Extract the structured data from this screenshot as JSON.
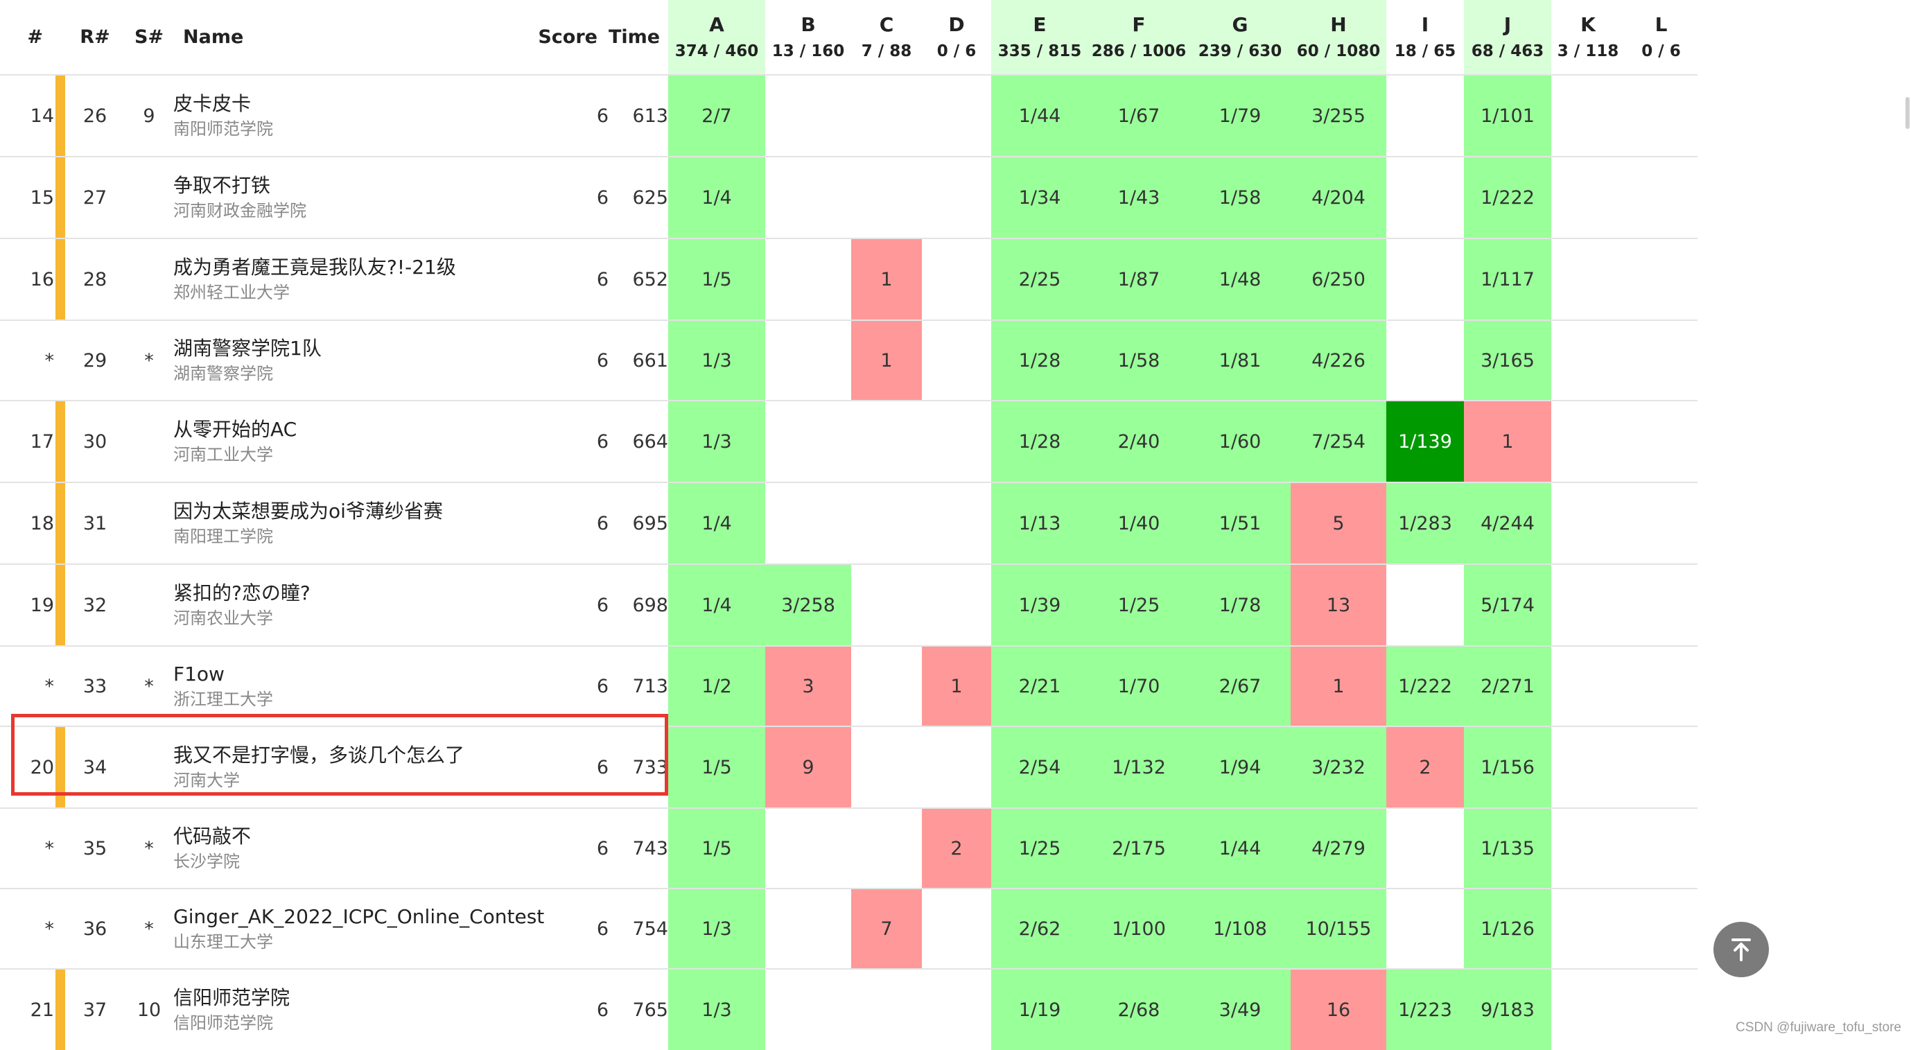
{
  "header": {
    "rank": "#",
    "rrank": "R#",
    "srank": "S#",
    "name": "Name",
    "score": "Score",
    "time": "Time"
  },
  "problems": [
    {
      "label": "A",
      "stat": "374 / 460"
    },
    {
      "label": "B",
      "stat": "13 / 160"
    },
    {
      "label": "C",
      "stat": "7 / 88"
    },
    {
      "label": "D",
      "stat": "0 / 6"
    },
    {
      "label": "E",
      "stat": "335 / 815"
    },
    {
      "label": "F",
      "stat": "286 / 1006"
    },
    {
      "label": "G",
      "stat": "239 / 630"
    },
    {
      "label": "H",
      "stat": "60 / 1080"
    },
    {
      "label": "I",
      "stat": "18 / 65"
    },
    {
      "label": "J",
      "stat": "68 / 463"
    },
    {
      "label": "K",
      "stat": "3 / 118"
    },
    {
      "label": "L",
      "stat": "0 / 6"
    }
  ],
  "rows": [
    {
      "rank": "14",
      "rrank": "26",
      "srank": "9",
      "medal": true,
      "team": "皮卡皮卡",
      "school": "南阳师范学院",
      "score": "6",
      "time": "613",
      "cells": [
        [
          "ac",
          "2/7"
        ],
        [
          "none",
          ""
        ],
        [
          "none",
          ""
        ],
        [
          "none",
          ""
        ],
        [
          "ac",
          "1/44"
        ],
        [
          "ac",
          "1/67"
        ],
        [
          "ac",
          "1/79"
        ],
        [
          "ac",
          "3/255"
        ],
        [
          "none",
          ""
        ],
        [
          "ac",
          "1/101"
        ],
        [
          "none",
          ""
        ],
        [
          "none",
          ""
        ]
      ]
    },
    {
      "rank": "15",
      "rrank": "27",
      "srank": "",
      "medal": true,
      "team": "争取不打铁",
      "school": "河南财政金融学院",
      "score": "6",
      "time": "625",
      "cells": [
        [
          "ac",
          "1/4"
        ],
        [
          "none",
          ""
        ],
        [
          "none",
          ""
        ],
        [
          "none",
          ""
        ],
        [
          "ac",
          "1/34"
        ],
        [
          "ac",
          "1/43"
        ],
        [
          "ac",
          "1/58"
        ],
        [
          "ac",
          "4/204"
        ],
        [
          "none",
          ""
        ],
        [
          "ac",
          "1/222"
        ],
        [
          "none",
          ""
        ],
        [
          "none",
          ""
        ]
      ]
    },
    {
      "rank": "16",
      "rrank": "28",
      "srank": "",
      "medal": true,
      "team": "成为勇者魔王竟是我队友?!-21级",
      "school": "郑州轻工业大学",
      "score": "6",
      "time": "652",
      "cells": [
        [
          "ac",
          "1/5"
        ],
        [
          "none",
          ""
        ],
        [
          "wa",
          "1"
        ],
        [
          "none",
          ""
        ],
        [
          "ac",
          "2/25"
        ],
        [
          "ac",
          "1/87"
        ],
        [
          "ac",
          "1/48"
        ],
        [
          "ac",
          "6/250"
        ],
        [
          "none",
          ""
        ],
        [
          "ac",
          "1/117"
        ],
        [
          "none",
          ""
        ],
        [
          "none",
          ""
        ]
      ]
    },
    {
      "rank": "*",
      "rrank": "29",
      "srank": "*",
      "medal": false,
      "team": "湖南警察学院1队",
      "school": "湖南警察学院",
      "score": "6",
      "time": "661",
      "cells": [
        [
          "ac",
          "1/3"
        ],
        [
          "none",
          ""
        ],
        [
          "wa",
          "1"
        ],
        [
          "none",
          ""
        ],
        [
          "ac",
          "1/28"
        ],
        [
          "ac",
          "1/58"
        ],
        [
          "ac",
          "1/81"
        ],
        [
          "ac",
          "4/226"
        ],
        [
          "none",
          ""
        ],
        [
          "ac",
          "3/165"
        ],
        [
          "none",
          ""
        ],
        [
          "none",
          ""
        ]
      ]
    },
    {
      "rank": "17",
      "rrank": "30",
      "srank": "",
      "medal": true,
      "team": "从零开始的AC",
      "school": "河南工业大学",
      "score": "6",
      "time": "664",
      "cells": [
        [
          "ac",
          "1/3"
        ],
        [
          "none",
          ""
        ],
        [
          "none",
          ""
        ],
        [
          "none",
          ""
        ],
        [
          "ac",
          "1/28"
        ],
        [
          "ac",
          "2/40"
        ],
        [
          "ac",
          "1/60"
        ],
        [
          "ac",
          "7/254"
        ],
        [
          "fb",
          "1/139"
        ],
        [
          "wa",
          "1"
        ],
        [
          "none",
          ""
        ],
        [
          "none",
          ""
        ]
      ]
    },
    {
      "rank": "18",
      "rrank": "31",
      "srank": "",
      "medal": true,
      "team": "因为太菜想要成为oi爷薄纱省赛",
      "school": "南阳理工学院",
      "score": "6",
      "time": "695",
      "cells": [
        [
          "ac",
          "1/4"
        ],
        [
          "none",
          ""
        ],
        [
          "none",
          ""
        ],
        [
          "none",
          ""
        ],
        [
          "ac",
          "1/13"
        ],
        [
          "ac",
          "1/40"
        ],
        [
          "ac",
          "1/51"
        ],
        [
          "wa",
          "5"
        ],
        [
          "ac",
          "1/283"
        ],
        [
          "ac",
          "4/244"
        ],
        [
          "none",
          ""
        ],
        [
          "none",
          ""
        ]
      ]
    },
    {
      "rank": "19",
      "rrank": "32",
      "srank": "",
      "medal": true,
      "team": "紧扣的?恋の瞳?",
      "school": "河南农业大学",
      "score": "6",
      "time": "698",
      "cells": [
        [
          "ac",
          "1/4"
        ],
        [
          "ac",
          "3/258"
        ],
        [
          "none",
          ""
        ],
        [
          "none",
          ""
        ],
        [
          "ac",
          "1/39"
        ],
        [
          "ac",
          "1/25"
        ],
        [
          "ac",
          "1/78"
        ],
        [
          "wa",
          "13"
        ],
        [
          "none",
          ""
        ],
        [
          "ac",
          "5/174"
        ],
        [
          "none",
          ""
        ],
        [
          "none",
          ""
        ]
      ]
    },
    {
      "rank": "*",
      "rrank": "33",
      "srank": "*",
      "medal": false,
      "team": "F1ow",
      "school": "浙江理工大学",
      "score": "6",
      "time": "713",
      "cells": [
        [
          "ac",
          "1/2"
        ],
        [
          "wa",
          "3"
        ],
        [
          "none",
          ""
        ],
        [
          "wa",
          "1"
        ],
        [
          "ac",
          "2/21"
        ],
        [
          "ac",
          "1/70"
        ],
        [
          "ac",
          "2/67"
        ],
        [
          "wa",
          "1"
        ],
        [
          "ac",
          "1/222"
        ],
        [
          "ac",
          "2/271"
        ],
        [
          "none",
          ""
        ],
        [
          "none",
          ""
        ]
      ]
    },
    {
      "rank": "20",
      "rrank": "34",
      "srank": "",
      "medal": true,
      "team": "我又不是打字慢，多谈几个怎么了",
      "school": "河南大学",
      "score": "6",
      "time": "733",
      "cells": [
        [
          "ac",
          "1/5"
        ],
        [
          "wa",
          "9"
        ],
        [
          "none",
          ""
        ],
        [
          "none",
          ""
        ],
        [
          "ac",
          "2/54"
        ],
        [
          "ac",
          "1/132"
        ],
        [
          "ac",
          "1/94"
        ],
        [
          "ac",
          "3/232"
        ],
        [
          "wa",
          "2"
        ],
        [
          "ac",
          "1/156"
        ],
        [
          "none",
          ""
        ],
        [
          "none",
          ""
        ]
      ]
    },
    {
      "rank": "*",
      "rrank": "35",
      "srank": "*",
      "medal": false,
      "team": "代码敲不",
      "school": "长沙学院",
      "score": "6",
      "time": "743",
      "cells": [
        [
          "ac",
          "1/5"
        ],
        [
          "none",
          ""
        ],
        [
          "none",
          ""
        ],
        [
          "wa",
          "2"
        ],
        [
          "ac",
          "1/25"
        ],
        [
          "ac",
          "2/175"
        ],
        [
          "ac",
          "1/44"
        ],
        [
          "ac",
          "4/279"
        ],
        [
          "none",
          ""
        ],
        [
          "ac",
          "1/135"
        ],
        [
          "none",
          ""
        ],
        [
          "none",
          ""
        ]
      ]
    },
    {
      "rank": "*",
      "rrank": "36",
      "srank": "*",
      "medal": false,
      "team": "Ginger_AK_2022_ICPC_Online_Contest",
      "school": "山东理工大学",
      "score": "6",
      "time": "754",
      "cells": [
        [
          "ac",
          "1/3"
        ],
        [
          "none",
          ""
        ],
        [
          "wa",
          "7"
        ],
        [
          "none",
          ""
        ],
        [
          "ac",
          "2/62"
        ],
        [
          "ac",
          "1/100"
        ],
        [
          "ac",
          "1/108"
        ],
        [
          "ac",
          "10/155"
        ],
        [
          "none",
          ""
        ],
        [
          "ac",
          "1/126"
        ],
        [
          "none",
          ""
        ],
        [
          "none",
          ""
        ]
      ]
    },
    {
      "rank": "21",
      "rrank": "37",
      "srank": "10",
      "medal": true,
      "team": "信阳师范学院",
      "school": "信阳师范学院",
      "score": "6",
      "time": "765",
      "cells": [
        [
          "ac",
          "1/3"
        ],
        [
          "none",
          ""
        ],
        [
          "none",
          ""
        ],
        [
          "none",
          ""
        ],
        [
          "ac",
          "1/19"
        ],
        [
          "ac",
          "2/68"
        ],
        [
          "ac",
          "3/49"
        ],
        [
          "wa",
          "16"
        ],
        [
          "ac",
          "1/223"
        ],
        [
          "ac",
          "9/183"
        ],
        [
          "none",
          ""
        ],
        [
          "none",
          ""
        ]
      ]
    }
  ],
  "solved_columns": [
    "A",
    "E",
    "F",
    "G",
    "H",
    "J"
  ],
  "colors": {
    "accepted": "#99ff99",
    "first_blood": "#009900",
    "rejected": "#ff9999",
    "medal_gold": "#f7b731",
    "header_solved": "#d9ffd9",
    "highlight_box": "#e8382f"
  },
  "icons": {
    "back_to_top": "arrow-up-to-line-icon"
  },
  "watermark": "CSDN @fujiware_tofu_store"
}
